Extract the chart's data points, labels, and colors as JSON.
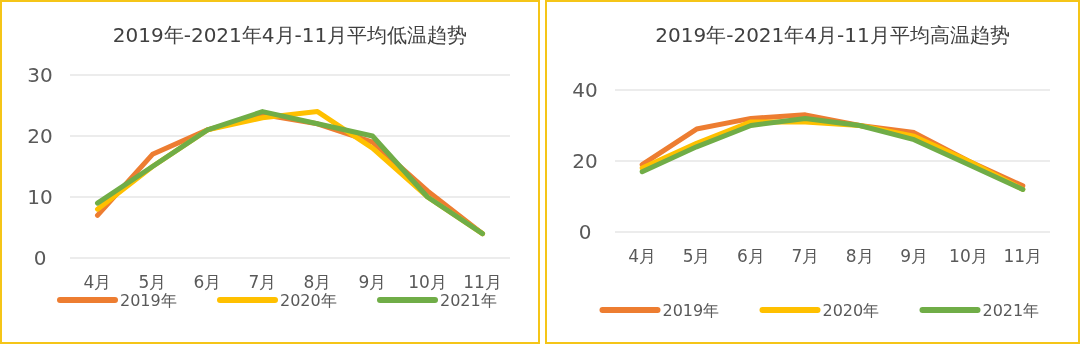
{
  "chart_data": [
    {
      "type": "line",
      "title": "2019年-2021年4月-11月平均低温趋势",
      "categories": [
        "4月",
        "5月",
        "6月",
        "7月",
        "8月",
        "9月",
        "10月",
        "11月"
      ],
      "ylim": [
        0,
        30
      ],
      "yticks": [
        0,
        10,
        20,
        30
      ],
      "grid": "y",
      "legend": "bottom",
      "series": [
        {
          "name": "2019年",
          "color": "#ed7d31",
          "values": [
            7,
            17,
            21,
            23.5,
            22,
            19,
            11,
            4
          ]
        },
        {
          "name": "2020年",
          "color": "#ffc000",
          "values": [
            8,
            15,
            21,
            23,
            24,
            18,
            10,
            4
          ]
        },
        {
          "name": "2021年",
          "color": "#70ad47",
          "values": [
            9,
            15,
            21,
            24,
            22,
            20,
            10,
            4
          ]
        }
      ]
    },
    {
      "type": "line",
      "title": "2019年-2021年4月-11月平均高温趋势",
      "categories": [
        "4月",
        "5月",
        "6月",
        "7月",
        "8月",
        "9月",
        "10月",
        "11月"
      ],
      "ylim": [
        0,
        40
      ],
      "yticks": [
        0,
        20,
        40
      ],
      "grid": "y",
      "legend": "bottom",
      "series": [
        {
          "name": "2019年",
          "color": "#ed7d31",
          "values": [
            19,
            29,
            32,
            33,
            30,
            28,
            20,
            13
          ]
        },
        {
          "name": "2020年",
          "color": "#ffc000",
          "values": [
            18,
            25,
            31,
            31,
            30,
            27,
            20,
            12
          ]
        },
        {
          "name": "2021年",
          "color": "#70ad47",
          "values": [
            17,
            24,
            30,
            32,
            30,
            26,
            19,
            12
          ]
        }
      ]
    }
  ]
}
